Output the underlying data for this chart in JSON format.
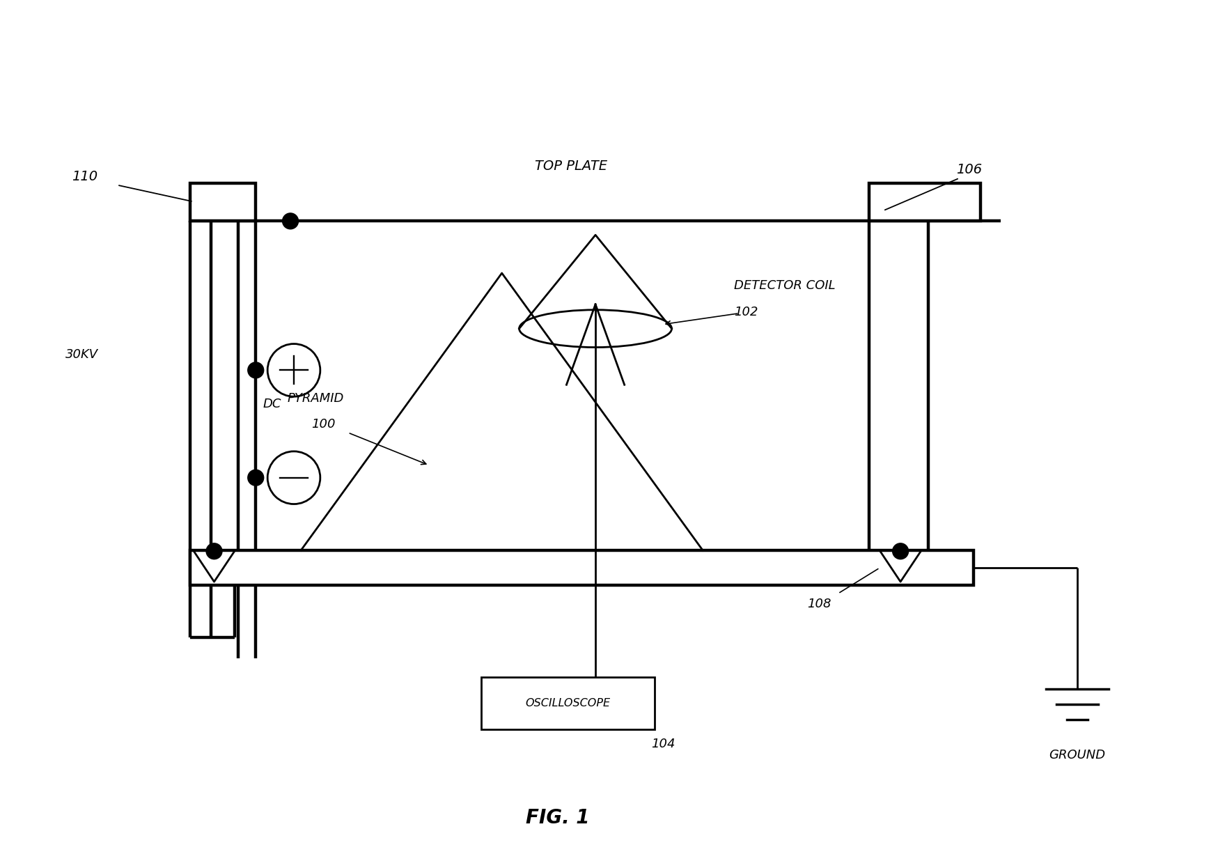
{
  "bg_color": "#ffffff",
  "lc": "#000000",
  "lw": 2.0,
  "lw_thick": 3.2,
  "fig_caption": "FIG. 1",
  "label_top_plate": "TOP PLATE",
  "label_106": "106",
  "label_110": "110",
  "label_30kv": "30KV",
  "label_dc": "DC",
  "label_pyramid": "PYRAMID",
  "label_100": "100",
  "label_detector_coil": "DETECTOR COIL",
  "label_102": "102",
  "label_oscilloscope": "OSCILLOSCOPE",
  "label_104": "104",
  "label_108": "108",
  "label_ground": "GROUND"
}
